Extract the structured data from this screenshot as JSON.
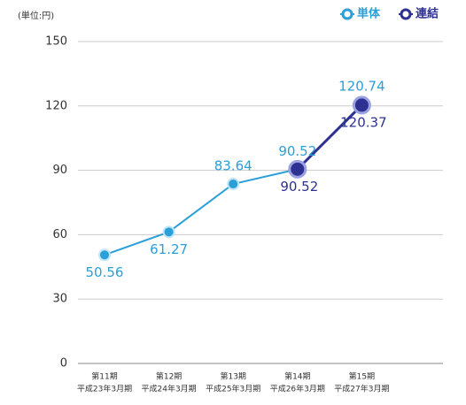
{
  "chart_data": {
    "type": "line",
    "unit_label": "(単位:円)",
    "categories": [
      [
        "第11期",
        "平成23年3月期"
      ],
      [
        "第12期",
        "平成24年3月期"
      ],
      [
        "第13期",
        "平成25年3月期"
      ],
      [
        "第14期",
        "平成26年3月期"
      ],
      [
        "第15期",
        "平成27年3月期"
      ]
    ],
    "series": [
      {
        "name": "単体",
        "color": "#2a9fd8",
        "values": [
          50.56,
          61.27,
          83.64,
          90.52,
          120.74
        ]
      },
      {
        "name": "連結",
        "color": "#2e3192",
        "values": [
          null,
          null,
          null,
          90.52,
          120.37
        ]
      }
    ],
    "ylim": [
      0,
      150
    ],
    "yticks": [
      0,
      30,
      60,
      90,
      120,
      150
    ],
    "grid": true,
    "legend": "top-right"
  }
}
